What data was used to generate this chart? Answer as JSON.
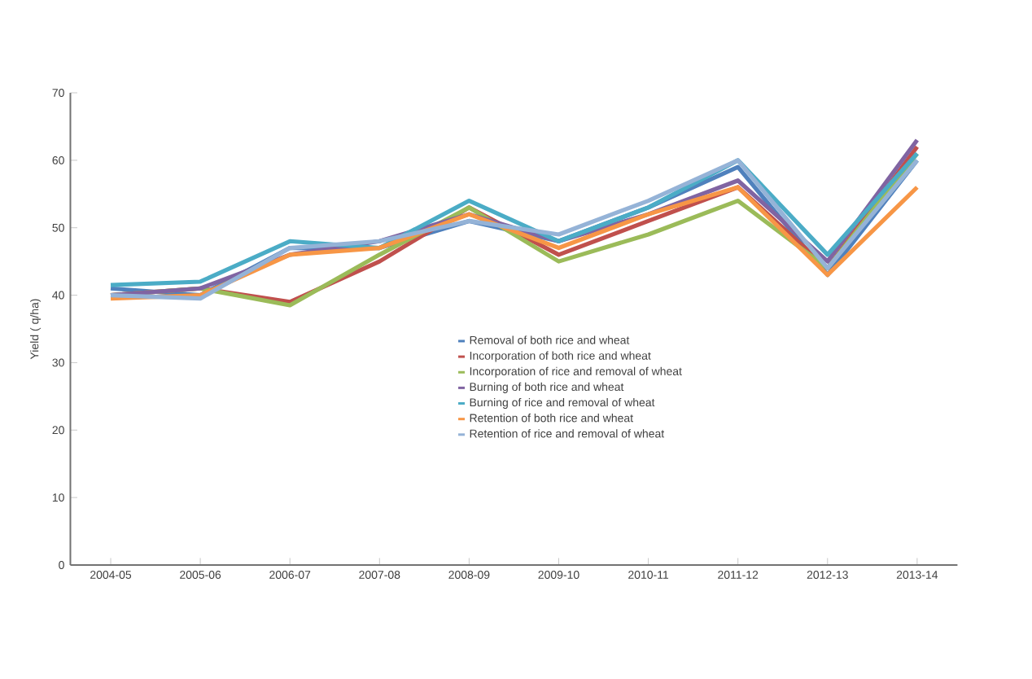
{
  "chart_data": {
    "type": "line",
    "ylabel": "Yield ( q/ha)",
    "categories": [
      "2004-05",
      "2005-06",
      "2006-07",
      "2007-08",
      "2008-09",
      "2009-10",
      "2010-11",
      "2011-12",
      "2012-13",
      "2013-14"
    ],
    "ylim": [
      0,
      70
    ],
    "yticks": [
      0,
      10,
      20,
      30,
      40,
      50,
      60,
      70
    ],
    "grid": false,
    "legend": "center",
    "marker": "none",
    "line_style": "solid",
    "series": [
      {
        "name": "Removal of both rice and wheat",
        "color": "#4f81bd",
        "values": [
          41,
          40,
          47,
          47,
          51,
          48,
          53,
          59,
          43,
          60
        ]
      },
      {
        "name": "Incorporation of both rice and wheat",
        "color": "#c0504d",
        "values": [
          40,
          41,
          39,
          45,
          53,
          46,
          51,
          56,
          44,
          62
        ]
      },
      {
        "name": "Incorporation of rice and removal of wheat",
        "color": "#9bbb59",
        "values": [
          40,
          41,
          38.5,
          46,
          53,
          45,
          49,
          54,
          44,
          61
        ]
      },
      {
        "name": "Burning of both rice and wheat",
        "color": "#8064a2",
        "values": [
          40,
          41,
          46,
          48,
          52,
          48,
          52,
          57,
          45,
          63
        ]
      },
      {
        "name": "Burning of rice and removal of wheat",
        "color": "#4bacc6",
        "values": [
          41.5,
          42,
          48,
          47,
          54,
          48,
          53,
          60,
          46,
          61
        ]
      },
      {
        "name": "Retention of both rice and wheat",
        "color": "#f79646",
        "values": [
          39.5,
          40,
          46,
          47,
          52,
          47,
          52,
          56,
          43,
          56
        ]
      },
      {
        "name": "Retention of rice and removal of wheat",
        "color": "#95b3d7",
        "values": [
          40,
          39.5,
          47,
          48,
          51,
          49,
          54,
          60,
          44,
          60
        ]
      }
    ]
  }
}
